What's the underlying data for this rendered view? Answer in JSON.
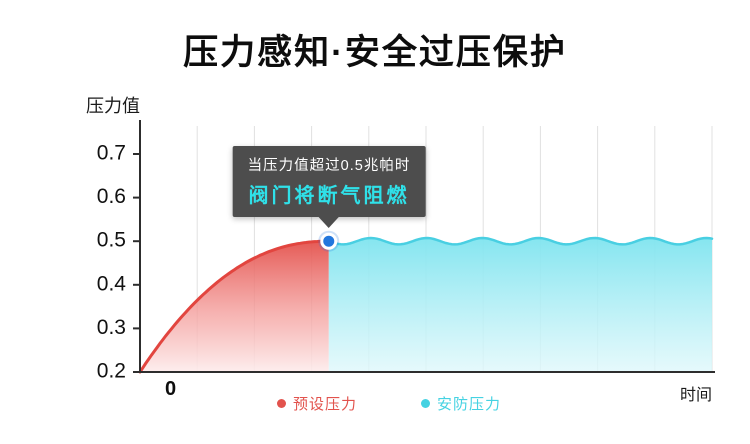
{
  "title": "压力感知·安全过压保护",
  "tooltip": {
    "line1": "当压力值超过0.5兆帕时",
    "line2": "阀门将断气阻燃"
  },
  "legend": [
    {
      "label": "预设压力",
      "color": "#e2534d"
    },
    {
      "label": "安防压力",
      "color": "#45d2e2"
    }
  ],
  "colors": {
    "preset_red": "#e2453f",
    "red_fill_top": "#e4524d",
    "red_fill_bottom": "#fdecec",
    "safety_cyan": "#49cfe2",
    "cyan_fill_top": "#7fe4ef",
    "cyan_fill_bottom": "#dff8fb",
    "dot_blue": "#2277dd",
    "tooltip_bg": "#4d4d4d",
    "highlight_cyan": "#2fe1e9",
    "axis": "#2d2d2d",
    "gridline": "#e0e0e0"
  },
  "chart_data": {
    "type": "area",
    "title": "压力感知·安全过压保护",
    "ylabel": "压力值",
    "xlabel": "时间",
    "x_origin_label": "0",
    "y_ticks": [
      0.2,
      0.3,
      0.4,
      0.5,
      0.6,
      0.7
    ],
    "ylim": [
      0.2,
      0.72
    ],
    "xlim": [
      0,
      10
    ],
    "grid": "vertical-only",
    "legend_position": "bottom-center",
    "threshold": 0.5,
    "threshold_unit": "兆帕",
    "series": [
      {
        "name": "预设压力",
        "color": "#e2453f",
        "style": "rising curve with red gradient fill",
        "x": [
          0,
          0.5,
          1.0,
          1.5,
          2.0,
          2.5,
          3.0,
          3.3
        ],
        "values": [
          0.2,
          0.29,
          0.36,
          0.42,
          0.46,
          0.49,
          0.498,
          0.5
        ]
      },
      {
        "name": "安防压力",
        "color": "#49cfe2",
        "style": "constant wavy plateau with cyan gradient fill",
        "x": [
          3.3,
          10
        ],
        "values": [
          0.5,
          0.5
        ]
      }
    ],
    "annotation": {
      "text": [
        "当压力值超过0.5兆帕时",
        "阀门将断气阻燃"
      ],
      "at": {
        "x": 3.3,
        "y": 0.5
      },
      "marker": "blue dot with white ring"
    }
  }
}
